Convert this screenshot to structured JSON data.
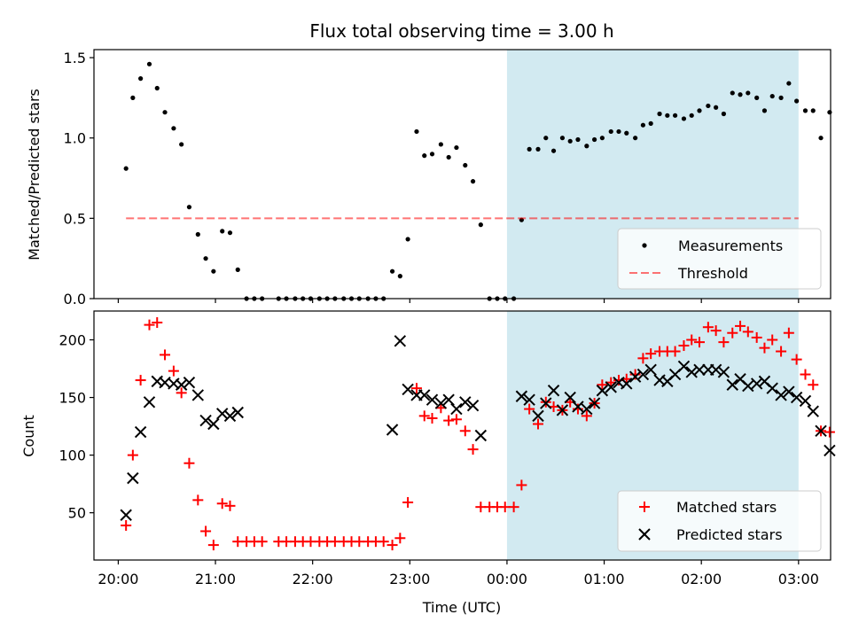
{
  "title": "Flux total observing time = 3.00 h",
  "xlabel": "Time (UTC)",
  "x_ticks": [
    "20:00",
    "21:00",
    "22:00",
    "23:00",
    "00:00",
    "01:00",
    "02:00",
    "03:00"
  ],
  "colors": {
    "shade": "#add8e6",
    "threshold": "#ff0000",
    "matched": "#ff0000",
    "predicted": "#000000",
    "measurements": "#000000"
  },
  "chart_data": [
    {
      "type": "scatter",
      "ylabel": "Matched/Predicted stars",
      "ylim": [
        0,
        1.55
      ],
      "yticks": [
        "0.0",
        "0.5",
        "1.0",
        "1.5"
      ],
      "x_unit": "hours since 20:00 UTC",
      "shaded_x_range": [
        4.0,
        7.0
      ],
      "threshold": 0.5,
      "threshold_x_range": [
        0.08,
        7.0
      ],
      "legend_position": "lower-right",
      "legend": [
        "Measurements",
        "Threshold"
      ],
      "series": [
        {
          "name": "Measurements",
          "marker": "dot",
          "points": [
            [
              0.08,
              0.81
            ],
            [
              0.15,
              1.25
            ],
            [
              0.23,
              1.37
            ],
            [
              0.32,
              1.46
            ],
            [
              0.4,
              1.31
            ],
            [
              0.48,
              1.16
            ],
            [
              0.57,
              1.06
            ],
            [
              0.65,
              0.96
            ],
            [
              0.73,
              0.57
            ],
            [
              0.82,
              0.4
            ],
            [
              0.9,
              0.25
            ],
            [
              0.98,
              0.17
            ],
            [
              1.07,
              0.42
            ],
            [
              1.15,
              0.41
            ],
            [
              1.23,
              0.18
            ],
            [
              1.32,
              0.0
            ],
            [
              1.4,
              0.0
            ],
            [
              1.48,
              0.0
            ],
            [
              1.65,
              0.0
            ],
            [
              1.73,
              0.0
            ],
            [
              1.82,
              0.0
            ],
            [
              1.9,
              0.0
            ],
            [
              1.98,
              0.0
            ],
            [
              2.07,
              0.0
            ],
            [
              2.15,
              0.0
            ],
            [
              2.23,
              0.0
            ],
            [
              2.32,
              0.0
            ],
            [
              2.4,
              0.0
            ],
            [
              2.48,
              0.0
            ],
            [
              2.57,
              0.0
            ],
            [
              2.65,
              0.0
            ],
            [
              2.73,
              0.0
            ],
            [
              2.82,
              0.17
            ],
            [
              2.9,
              0.14
            ],
            [
              2.98,
              0.37
            ],
            [
              3.07,
              1.04
            ],
            [
              3.15,
              0.89
            ],
            [
              3.23,
              0.9
            ],
            [
              3.32,
              0.96
            ],
            [
              3.4,
              0.88
            ],
            [
              3.48,
              0.94
            ],
            [
              3.57,
              0.83
            ],
            [
              3.65,
              0.73
            ],
            [
              3.73,
              0.46
            ],
            [
              3.82,
              0.0
            ],
            [
              3.9,
              0.0
            ],
            [
              3.98,
              0.0
            ],
            [
              4.07,
              0.0
            ],
            [
              4.15,
              0.49
            ],
            [
              4.23,
              0.93
            ],
            [
              4.32,
              0.93
            ],
            [
              4.4,
              1.0
            ],
            [
              4.48,
              0.92
            ],
            [
              4.57,
              1.0
            ],
            [
              4.65,
              0.98
            ],
            [
              4.73,
              0.99
            ],
            [
              4.82,
              0.95
            ],
            [
              4.9,
              0.99
            ],
            [
              4.98,
              1.0
            ],
            [
              5.07,
              1.04
            ],
            [
              5.15,
              1.04
            ],
            [
              5.23,
              1.03
            ],
            [
              5.32,
              1.0
            ],
            [
              5.4,
              1.08
            ],
            [
              5.48,
              1.09
            ],
            [
              5.57,
              1.15
            ],
            [
              5.65,
              1.14
            ],
            [
              5.73,
              1.14
            ],
            [
              5.82,
              1.12
            ],
            [
              5.9,
              1.14
            ],
            [
              5.98,
              1.17
            ],
            [
              6.07,
              1.2
            ],
            [
              6.15,
              1.19
            ],
            [
              6.23,
              1.15
            ],
            [
              6.32,
              1.28
            ],
            [
              6.4,
              1.27
            ],
            [
              6.48,
              1.28
            ],
            [
              6.57,
              1.25
            ],
            [
              6.65,
              1.17
            ],
            [
              6.73,
              1.26
            ],
            [
              6.82,
              1.25
            ],
            [
              6.9,
              1.34
            ],
            [
              6.98,
              1.23
            ],
            [
              7.07,
              1.17
            ],
            [
              7.15,
              1.17
            ],
            [
              7.23,
              1.0
            ],
            [
              7.32,
              1.16
            ]
          ]
        }
      ]
    },
    {
      "type": "scatter",
      "ylabel": "Count",
      "ylim": [
        9,
        225
      ],
      "yticks": [
        "50",
        "100",
        "150",
        "200"
      ],
      "x_unit": "hours since 20:00 UTC",
      "shaded_x_range": [
        4.0,
        7.0
      ],
      "legend_position": "lower-right",
      "legend": [
        "Matched stars",
        "Predicted stars"
      ],
      "series": [
        {
          "name": "Matched stars",
          "marker": "plus",
          "points": [
            [
              0.08,
              39
            ],
            [
              0.15,
              100
            ],
            [
              0.23,
              165
            ],
            [
              0.32,
              213
            ],
            [
              0.4,
              215
            ],
            [
              0.48,
              187
            ],
            [
              0.57,
              173
            ],
            [
              0.65,
              154
            ],
            [
              0.73,
              93
            ],
            [
              0.82,
              61
            ],
            [
              0.9,
              34
            ],
            [
              0.98,
              22
            ],
            [
              1.07,
              58
            ],
            [
              1.15,
              56
            ],
            [
              1.23,
              25
            ],
            [
              1.32,
              25
            ],
            [
              1.4,
              25
            ],
            [
              1.48,
              25
            ],
            [
              1.65,
              25
            ],
            [
              1.73,
              25
            ],
            [
              1.82,
              25
            ],
            [
              1.9,
              25
            ],
            [
              1.98,
              25
            ],
            [
              2.07,
              25
            ],
            [
              2.15,
              25
            ],
            [
              2.23,
              25
            ],
            [
              2.32,
              25
            ],
            [
              2.4,
              25
            ],
            [
              2.48,
              25
            ],
            [
              2.57,
              25
            ],
            [
              2.65,
              25
            ],
            [
              2.73,
              25
            ],
            [
              2.82,
              22
            ],
            [
              2.9,
              28
            ],
            [
              2.98,
              59
            ],
            [
              3.07,
              158
            ],
            [
              3.15,
              134
            ],
            [
              3.23,
              132
            ],
            [
              3.32,
              141
            ],
            [
              3.4,
              130
            ],
            [
              3.48,
              131
            ],
            [
              3.57,
              121
            ],
            [
              3.65,
              105
            ],
            [
              3.73,
              55
            ],
            [
              3.82,
              55
            ],
            [
              3.9,
              55
            ],
            [
              3.98,
              55
            ],
            [
              4.07,
              55
            ],
            [
              4.15,
              74
            ],
            [
              4.23,
              140
            ],
            [
              4.32,
              127
            ],
            [
              4.4,
              146
            ],
            [
              4.48,
              142
            ],
            [
              4.57,
              139
            ],
            [
              4.65,
              146
            ],
            [
              4.73,
              140
            ],
            [
              4.82,
              134
            ],
            [
              4.9,
              145
            ],
            [
              4.98,
              161
            ],
            [
              5.07,
              163
            ],
            [
              5.15,
              165
            ],
            [
              5.23,
              166
            ],
            [
              5.32,
              170
            ],
            [
              5.4,
              184
            ],
            [
              5.48,
              188
            ],
            [
              5.57,
              190
            ],
            [
              5.65,
              190
            ],
            [
              5.73,
              190
            ],
            [
              5.82,
              195
            ],
            [
              5.9,
              200
            ],
            [
              5.98,
              198
            ],
            [
              6.07,
              211
            ],
            [
              6.15,
              208
            ],
            [
              6.23,
              198
            ],
            [
              6.32,
              206
            ],
            [
              6.4,
              212
            ],
            [
              6.48,
              207
            ],
            [
              6.57,
              202
            ],
            [
              6.65,
              193
            ],
            [
              6.73,
              200
            ],
            [
              6.82,
              190
            ],
            [
              6.9,
              206
            ],
            [
              6.98,
              183
            ],
            [
              7.07,
              170
            ],
            [
              7.15,
              161
            ],
            [
              7.23,
              121
            ],
            [
              7.32,
              120
            ]
          ]
        },
        {
          "name": "Predicted stars",
          "marker": "x",
          "points": [
            [
              0.08,
              48
            ],
            [
              0.15,
              80
            ],
            [
              0.23,
              120
            ],
            [
              0.32,
              146
            ],
            [
              0.4,
              164
            ],
            [
              0.48,
              163
            ],
            [
              0.57,
              162
            ],
            [
              0.65,
              161
            ],
            [
              0.73,
              163
            ],
            [
              0.82,
              152
            ],
            [
              0.9,
              130
            ],
            [
              0.98,
              127
            ],
            [
              1.07,
              136
            ],
            [
              1.15,
              134
            ],
            [
              1.23,
              137
            ],
            [
              2.82,
              122
            ],
            [
              2.9,
              199
            ],
            [
              2.98,
              157
            ],
            [
              3.07,
              152
            ],
            [
              3.15,
              152
            ],
            [
              3.23,
              148
            ],
            [
              3.32,
              145
            ],
            [
              3.4,
              148
            ],
            [
              3.48,
              140
            ],
            [
              3.57,
              146
            ],
            [
              3.65,
              143
            ],
            [
              3.73,
              117
            ],
            [
              4.15,
              151
            ],
            [
              4.23,
              148
            ],
            [
              4.32,
              134
            ],
            [
              4.4,
              145
            ],
            [
              4.48,
              156
            ],
            [
              4.57,
              139
            ],
            [
              4.65,
              150
            ],
            [
              4.73,
              142
            ],
            [
              4.82,
              140
            ],
            [
              4.9,
              145
            ],
            [
              4.98,
              156
            ],
            [
              5.07,
              159
            ],
            [
              5.15,
              163
            ],
            [
              5.23,
              162
            ],
            [
              5.32,
              168
            ],
            [
              5.4,
              170
            ],
            [
              5.48,
              174
            ],
            [
              5.57,
              165
            ],
            [
              5.65,
              164
            ],
            [
              5.73,
              170
            ],
            [
              5.82,
              177
            ],
            [
              5.9,
              172
            ],
            [
              5.98,
              174
            ],
            [
              6.07,
              174
            ],
            [
              6.15,
              174
            ],
            [
              6.23,
              172
            ],
            [
              6.32,
              161
            ],
            [
              6.4,
              166
            ],
            [
              6.48,
              160
            ],
            [
              6.57,
              162
            ],
            [
              6.65,
              164
            ],
            [
              6.73,
              158
            ],
            [
              6.82,
              152
            ],
            [
              6.9,
              155
            ],
            [
              6.98,
              150
            ],
            [
              7.07,
              147
            ],
            [
              7.15,
              138
            ],
            [
              7.23,
              121
            ],
            [
              7.32,
              104
            ]
          ]
        }
      ]
    }
  ]
}
